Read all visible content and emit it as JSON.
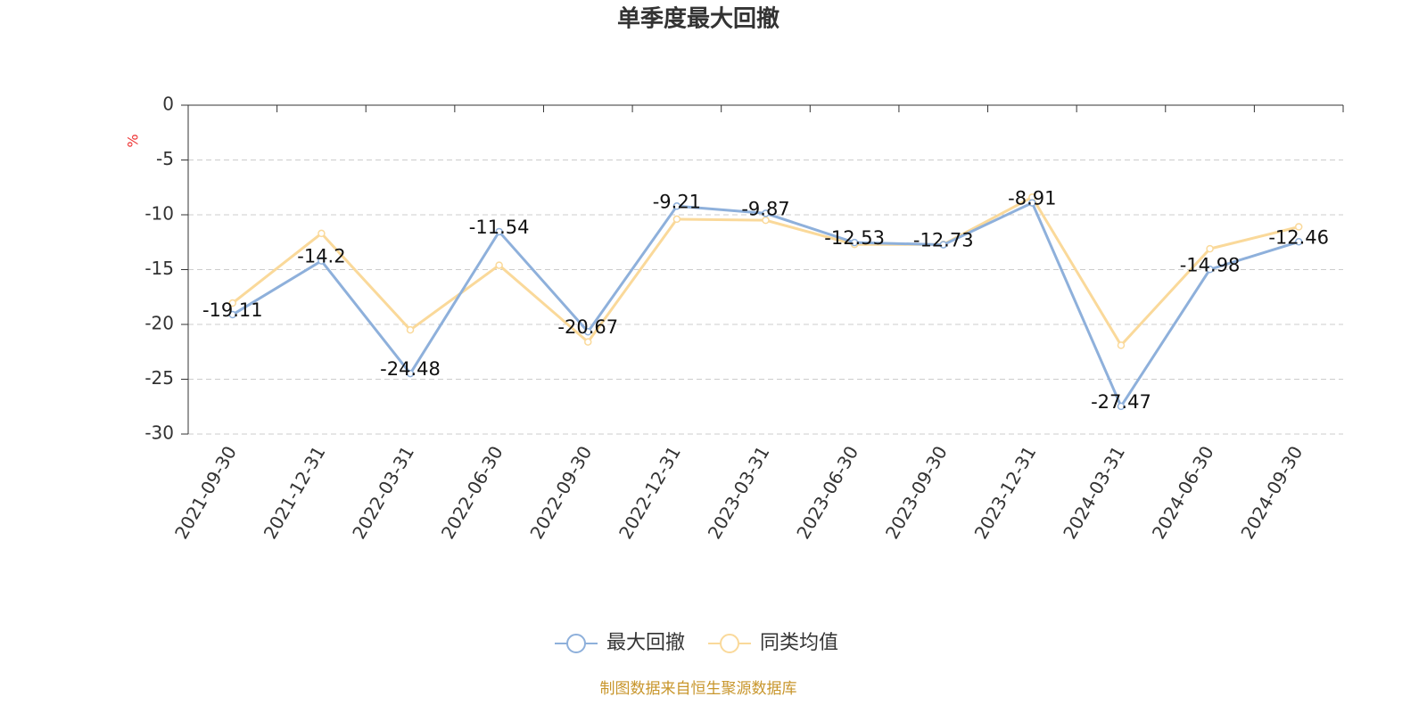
{
  "chart_data": {
    "type": "line",
    "title": "单季度最大回撤",
    "y_label": "%",
    "categories": [
      "2021-09-30",
      "2021-12-31",
      "2022-03-31",
      "2022-06-30",
      "2022-09-30",
      "2022-12-31",
      "2023-03-31",
      "2023-06-30",
      "2023-09-30",
      "2023-12-31",
      "2024-03-31",
      "2024-06-30",
      "2024-09-30"
    ],
    "series": [
      {
        "name": "最大回撤",
        "color": "#8eb0db",
        "values": [
          -19.11,
          -14.2,
          -24.48,
          -11.54,
          -20.67,
          -9.21,
          -9.87,
          -12.53,
          -12.73,
          -8.91,
          -27.47,
          -14.98,
          -12.46
        ],
        "data_labels": true
      },
      {
        "name": "同类均值",
        "color": "#fad99a",
        "values": [
          -18.05,
          -11.7,
          -20.5,
          -14.6,
          -21.6,
          -10.4,
          -10.5,
          -12.7,
          -12.7,
          -8.4,
          -21.9,
          -13.1,
          -11.1
        ],
        "data_labels": false
      }
    ],
    "ylim": [
      -30,
      0
    ],
    "yticks": [
      0,
      -5,
      -10,
      -15,
      -20,
      -25,
      -30
    ],
    "grid": true,
    "legend": "bottom",
    "source": "制图数据来自恒生聚源数据库"
  }
}
